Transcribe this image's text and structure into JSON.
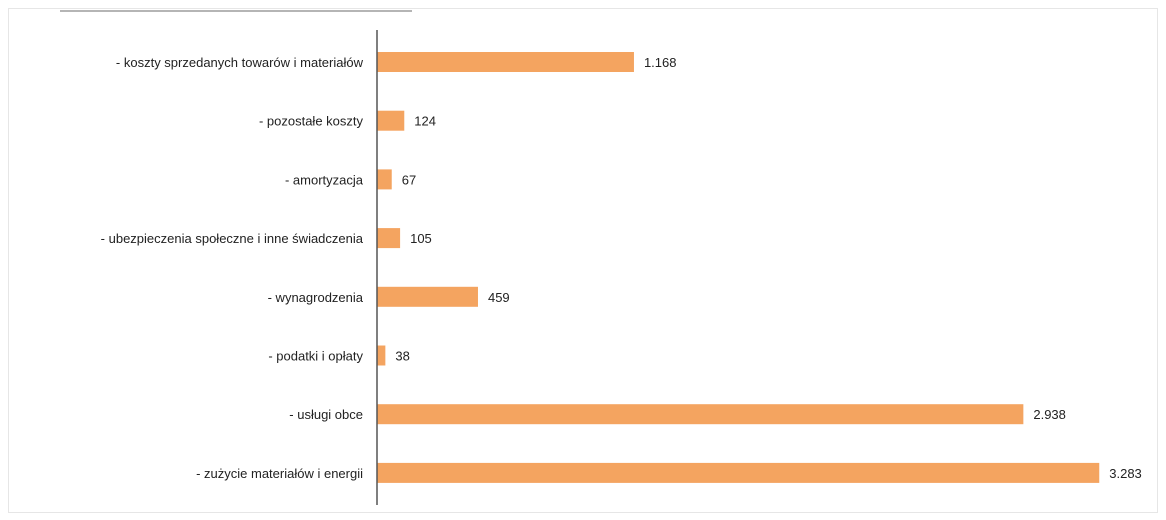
{
  "chart_data": {
    "type": "bar",
    "orientation": "horizontal",
    "title": "",
    "xlabel": "",
    "ylabel": "",
    "bar_color": "#f4a460",
    "axis_color": "#555555",
    "categories": [
      "- koszty sprzedanych towarów i materiałów",
      "- pozostałe koszty",
      "- amortyzacja",
      "- ubezpieczenia społeczne i inne świadczenia",
      "- wynagrodzenia",
      "- podatki i opłaty",
      "- usługi obce",
      "- zużycie materiałów i energii"
    ],
    "values": [
      1168,
      124,
      67,
      105,
      459,
      38,
      2938,
      3283
    ],
    "data_labels": [
      "1.168",
      "124",
      "67",
      "105",
      "459",
      "38",
      "2.938",
      "3.283"
    ],
    "xlim": [
      0,
      3300
    ],
    "grid": false,
    "legend": "none"
  }
}
